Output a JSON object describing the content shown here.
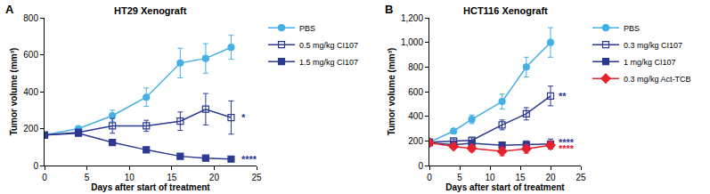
{
  "chart_data": [
    {
      "type": "line",
      "panel_label": "A",
      "title": "HT29 Xenograft",
      "x_label": "Days after start of treatment",
      "y_label": "Tumor volume (mm³)",
      "xlim": [
        0,
        25
      ],
      "xticks": [
        0,
        5,
        10,
        15,
        20,
        25
      ],
      "ylim": [
        0,
        800
      ],
      "yticks": [
        0,
        200,
        400,
        600,
        800
      ],
      "grid": false,
      "legend": "right",
      "series": [
        {
          "name": "PBS",
          "color": "#45b0e5",
          "marker": "circle",
          "line_style": "solid",
          "x": [
            0,
            4,
            8,
            12,
            16,
            19,
            22
          ],
          "values": [
            165,
            200,
            270,
            370,
            555,
            580,
            640
          ],
          "errors": [
            5,
            10,
            30,
            50,
            80,
            80,
            65
          ]
        },
        {
          "name": "0.5 mg/kg CI107",
          "color": "#2b3990",
          "marker": "square-open",
          "line_style": "solid",
          "x": [
            0,
            4,
            8,
            12,
            16,
            19,
            22
          ],
          "values": [
            165,
            180,
            215,
            215,
            240,
            305,
            260
          ],
          "errors": [
            5,
            10,
            40,
            30,
            50,
            85,
            90
          ]
        },
        {
          "name": "1.5 mg/kg CI107",
          "color": "#2b3990",
          "marker": "square",
          "line_style": "solid",
          "x": [
            0,
            4,
            8,
            12,
            16,
            19,
            22
          ],
          "values": [
            165,
            175,
            125,
            85,
            50,
            40,
            35
          ],
          "errors": [
            5,
            10,
            15,
            10,
            8,
            5,
            5
          ]
        }
      ],
      "annotations": [
        {
          "text": "*",
          "x": 23,
          "y": 260,
          "color": "#2b3990"
        },
        {
          "text": "****",
          "x": 23,
          "y": 35,
          "color": "#2b3990"
        }
      ]
    },
    {
      "type": "line",
      "panel_label": "B",
      "title": "HCT116 Xenograft",
      "x_label": "Days after start of treatment",
      "y_label": "Tumor volume (mm³)",
      "xlim": [
        0,
        25
      ],
      "xticks": [
        0,
        5,
        10,
        15,
        20,
        25
      ],
      "ylim": [
        0,
        1200
      ],
      "yticks": [
        0,
        200,
        400,
        600,
        800,
        {
          "value": 1000,
          "label": "1,000"
        },
        {
          "value": 1200,
          "label": "1,200"
        }
      ],
      "grid": false,
      "legend": "right",
      "series": [
        {
          "name": "PBS",
          "color": "#45b0e5",
          "marker": "circle",
          "line_style": "solid",
          "x": [
            0,
            4,
            7,
            12,
            16,
            20
          ],
          "values": [
            190,
            280,
            375,
            520,
            800,
            1000
          ],
          "errors": [
            10,
            20,
            35,
            60,
            80,
            120
          ]
        },
        {
          "name": "0.3 mg/kg CI107",
          "color": "#2b3990",
          "marker": "square-open",
          "line_style": "solid",
          "x": [
            0,
            4,
            7,
            12,
            16,
            20
          ],
          "values": [
            190,
            200,
            205,
            330,
            420,
            565
          ],
          "errors": [
            10,
            15,
            20,
            40,
            50,
            80
          ]
        },
        {
          "name": "1 mg/kg CI107",
          "color": "#2b3990",
          "marker": "square",
          "line_style": "solid",
          "x": [
            0,
            4,
            7,
            12,
            16,
            20
          ],
          "values": [
            185,
            170,
            180,
            165,
            170,
            175
          ],
          "errors": [
            10,
            15,
            20,
            20,
            30,
            40
          ]
        },
        {
          "name": "0.3 mg/kg Act-TCB",
          "color": "#e8212e",
          "marker": "diamond",
          "line_style": "solid",
          "x": [
            0,
            4,
            7,
            12,
            16,
            20
          ],
          "values": [
            185,
            155,
            140,
            115,
            135,
            165
          ],
          "errors": [
            10,
            15,
            25,
            35,
            35,
            30
          ]
        }
      ],
      "annotations": [
        {
          "text": "**",
          "x": 21,
          "y": 565,
          "color": "#2b3990"
        },
        {
          "text": "****",
          "x": 21,
          "y": 190,
          "color": "#2b3990"
        },
        {
          "text": "****",
          "x": 21,
          "y": 140,
          "color": "#e8212e"
        }
      ]
    }
  ]
}
